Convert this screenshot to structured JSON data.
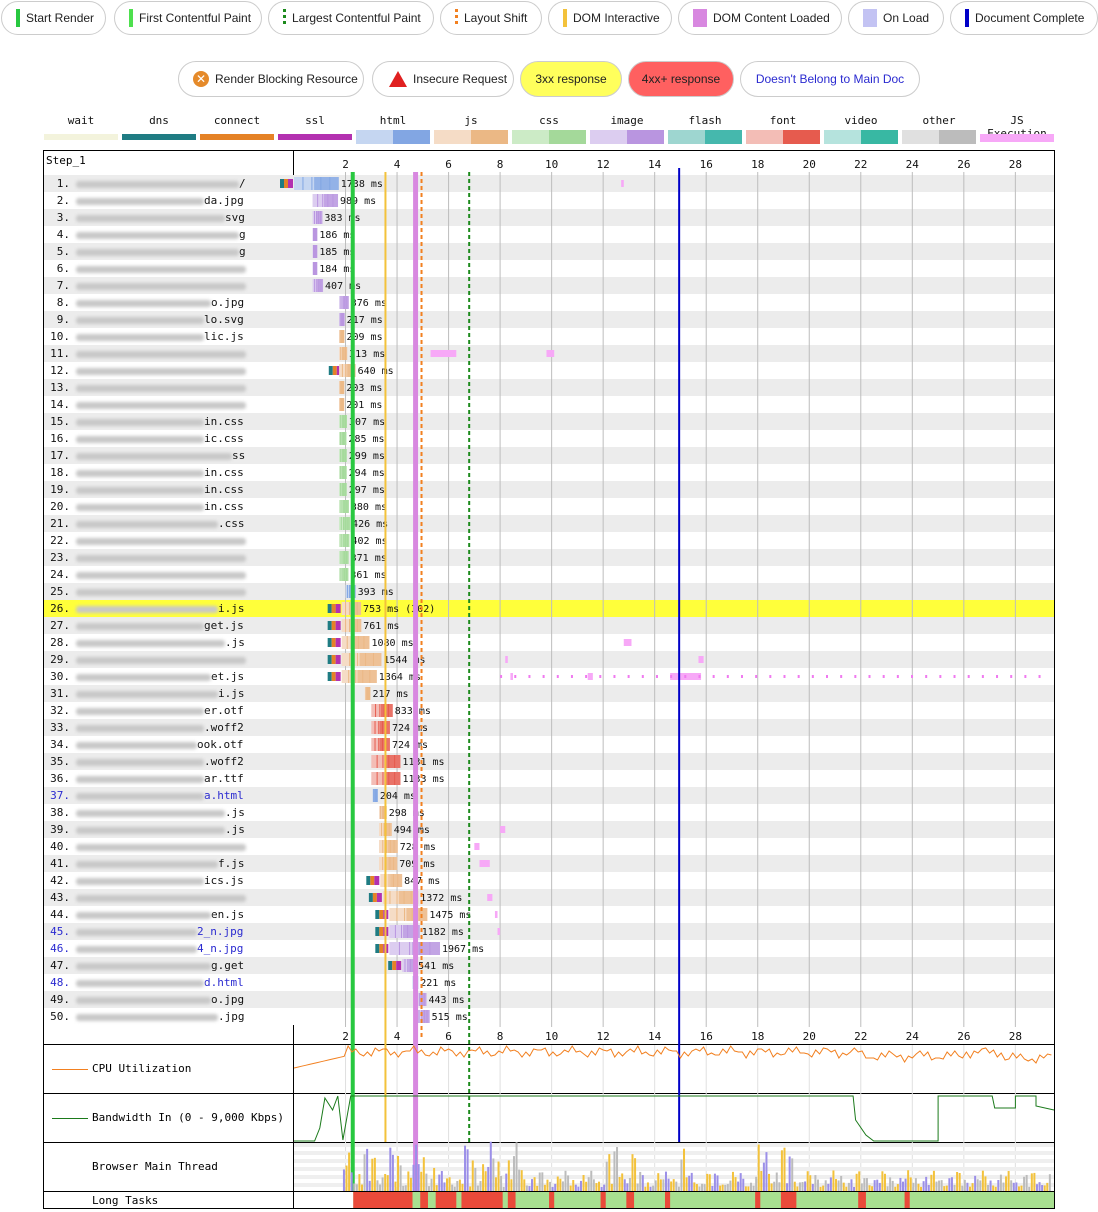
{
  "top_legend": [
    {
      "label": "Start Render",
      "marker": "bar",
      "color": "#28c840"
    },
    {
      "label": "First Contentful Paint",
      "marker": "bar",
      "color": "#4ee04e"
    },
    {
      "label": "Largest Contentful Paint",
      "marker": "dotted",
      "color": "#1c8a1c"
    },
    {
      "label": "Layout Shift",
      "marker": "dotted",
      "color": "#f28020"
    },
    {
      "label": "DOM Interactive",
      "marker": "bar",
      "color": "#f3c23b"
    },
    {
      "label": "DOM Content Loaded",
      "marker": "block",
      "color": "#d888e0"
    },
    {
      "label": "On Load",
      "marker": "block",
      "color": "#c3c3f3"
    },
    {
      "label": "Document Complete",
      "marker": "bar",
      "color": "#0000c8"
    }
  ],
  "second_legend": [
    {
      "label": "Render Blocking Resource",
      "style": "blocking"
    },
    {
      "label": "Insecure Request",
      "style": "insecure"
    },
    {
      "label": "3xx response",
      "style": "r3xx"
    },
    {
      "label": "4xx+ response",
      "style": "r4xx"
    },
    {
      "label": "Doesn't Belong to Main Doc",
      "style": "notmain"
    }
  ],
  "type_legend": [
    {
      "label": "wait",
      "colors": [
        "#f3f3dc"
      ]
    },
    {
      "label": "dns",
      "colors": [
        "#1f7c83"
      ]
    },
    {
      "label": "connect",
      "colors": [
        "#e58226"
      ]
    },
    {
      "label": "ssl",
      "colors": [
        "#b331b0"
      ]
    },
    {
      "label": "html",
      "colors": [
        "#c5d6f1",
        "#82a6e3"
      ]
    },
    {
      "label": "js",
      "colors": [
        "#f5dcc6",
        "#ebb885"
      ]
    },
    {
      "label": "css",
      "colors": [
        "#ccebc6",
        "#a4d99a"
      ]
    },
    {
      "label": "image",
      "colors": [
        "#dccdf0",
        "#b995e0"
      ]
    },
    {
      "label": "flash",
      "colors": [
        "#9ed6d0",
        "#45b8ad"
      ]
    },
    {
      "label": "font",
      "colors": [
        "#f3bdb6",
        "#e65b4e"
      ]
    },
    {
      "label": "video",
      "colors": [
        "#b5e3dd",
        "#38b8a3"
      ]
    },
    {
      "label": "other",
      "colors": [
        "#e0e0e0",
        "#bcbcbc"
      ]
    },
    {
      "label": "JS Execution",
      "colors": [
        "#f7a8f7"
      ]
    }
  ],
  "step_label": "Step_1",
  "axis": {
    "ticks": [
      2,
      4,
      6,
      8,
      10,
      12,
      14,
      16,
      18,
      20,
      22,
      24,
      26,
      28
    ],
    "max_s": 29.5
  },
  "markers": {
    "start_render": 2.28,
    "fcp": 2.2,
    "lcp": 6.8,
    "layout_shift": 4.95,
    "dom_interactive": 3.55,
    "dom_content_loaded": 4.7,
    "document_complete": 14.95
  },
  "requests": [
    {
      "n": "1.",
      "suffix": "/",
      "start": 0.0,
      "dur": 1.738,
      "text": "1738 ms",
      "type": "html",
      "conn": true
    },
    {
      "n": "2.",
      "suffix": "da.jpg",
      "start": 0.72,
      "dur": 0.989,
      "text": "989 ms",
      "type": "image"
    },
    {
      "n": "3.",
      "suffix": "svg",
      "start": 0.72,
      "dur": 0.383,
      "text": "383 ms",
      "type": "image"
    },
    {
      "n": "4.",
      "suffix": "g",
      "start": 0.72,
      "dur": 0.186,
      "text": "186 ms",
      "type": "image"
    },
    {
      "n": "5.",
      "suffix": "g",
      "start": 0.72,
      "dur": 0.185,
      "text": "185 ms",
      "type": "image"
    },
    {
      "n": "6.",
      "suffix": "",
      "start": 0.72,
      "dur": 0.184,
      "text": "184 ms",
      "type": "image"
    },
    {
      "n": "7.",
      "suffix": "",
      "start": 0.72,
      "dur": 0.407,
      "text": "407 ms",
      "type": "image"
    },
    {
      "n": "8.",
      "suffix": "o.jpg",
      "start": 1.75,
      "dur": 0.376,
      "text": "376 ms",
      "type": "image"
    },
    {
      "n": "9.",
      "suffix": "lo.svg",
      "start": 1.75,
      "dur": 0.217,
      "text": "217 ms",
      "type": "image"
    },
    {
      "n": "10.",
      "suffix": "lic.js",
      "start": 1.75,
      "dur": 0.209,
      "text": "209 ms",
      "type": "js"
    },
    {
      "n": "11.",
      "suffix": "",
      "start": 1.75,
      "dur": 0.313,
      "text": "313 ms",
      "type": "js"
    },
    {
      "n": "12.",
      "suffix": "",
      "start": 1.75,
      "dur": 0.64,
      "text": "640 ms",
      "type": "js",
      "conn": true,
      "conn_at": 1.35
    },
    {
      "n": "13.",
      "suffix": "",
      "start": 1.75,
      "dur": 0.203,
      "text": "203 ms",
      "type": "js"
    },
    {
      "n": "14.",
      "suffix": "",
      "start": 1.75,
      "dur": 0.201,
      "text": "201 ms",
      "type": "js"
    },
    {
      "n": "15.",
      "suffix": "in.css",
      "start": 1.75,
      "dur": 0.307,
      "text": "307 ms",
      "type": "css"
    },
    {
      "n": "16.",
      "suffix": "ic.css",
      "start": 1.75,
      "dur": 0.285,
      "text": "285 ms",
      "type": "css"
    },
    {
      "n": "17.",
      "suffix": "ss",
      "start": 1.75,
      "dur": 0.299,
      "text": "299 ms",
      "type": "css"
    },
    {
      "n": "18.",
      "suffix": "in.css",
      "start": 1.75,
      "dur": 0.294,
      "text": "294 ms",
      "type": "css"
    },
    {
      "n": "19.",
      "suffix": "in.css",
      "start": 1.75,
      "dur": 0.297,
      "text": "297 ms",
      "type": "css"
    },
    {
      "n": "20.",
      "suffix": "in.css",
      "start": 1.75,
      "dur": 0.38,
      "text": "380 ms",
      "type": "css"
    },
    {
      "n": "21.",
      "suffix": ".css",
      "start": 1.75,
      "dur": 0.426,
      "text": "426 ms",
      "type": "css"
    },
    {
      "n": "22.",
      "suffix": "",
      "start": 1.75,
      "dur": 0.402,
      "text": "402 ms",
      "type": "css"
    },
    {
      "n": "23.",
      "suffix": "",
      "start": 1.75,
      "dur": 0.371,
      "text": "371 ms",
      "type": "css"
    },
    {
      "n": "24.",
      "suffix": "",
      "start": 1.75,
      "dur": 0.361,
      "text": "361 ms",
      "type": "css"
    },
    {
      "n": "25.",
      "suffix": "",
      "start": 2.0,
      "dur": 0.393,
      "text": "393 ms",
      "type": "html"
    },
    {
      "n": "26.",
      "suffix": "i.js",
      "start": 1.85,
      "dur": 0.753,
      "text": "753 ms (302)",
      "type": "js",
      "conn": true,
      "highlight": true
    },
    {
      "n": "27.",
      "suffix": "get.js",
      "start": 1.85,
      "dur": 0.761,
      "text": "761 ms",
      "type": "js",
      "conn": true
    },
    {
      "n": "28.",
      "suffix": ".js",
      "start": 1.85,
      "dur": 1.08,
      "text": "1080 ms",
      "type": "js",
      "conn": true
    },
    {
      "n": "29.",
      "suffix": "",
      "start": 1.85,
      "dur": 1.544,
      "text": "1544 ms",
      "type": "js",
      "conn": true
    },
    {
      "n": "30.",
      "suffix": "et.js",
      "start": 1.85,
      "dur": 1.364,
      "text": "1364 ms",
      "type": "js",
      "conn": true
    },
    {
      "n": "31.",
      "suffix": "i.js",
      "start": 2.75,
      "dur": 0.217,
      "text": "217 ms",
      "type": "js"
    },
    {
      "n": "32.",
      "suffix": "er.otf",
      "start": 3.0,
      "dur": 0.833,
      "text": "833 ms",
      "type": "font"
    },
    {
      "n": "33.",
      "suffix": ".woff2",
      "start": 3.0,
      "dur": 0.724,
      "text": "724 ms",
      "type": "font"
    },
    {
      "n": "34.",
      "suffix": "ook.otf",
      "start": 3.0,
      "dur": 0.724,
      "text": "724 ms",
      "type": "font"
    },
    {
      "n": "35.",
      "suffix": ".woff2",
      "start": 3.0,
      "dur": 1.131,
      "text": "1131 ms",
      "type": "font"
    },
    {
      "n": "36.",
      "suffix": "ar.ttf",
      "start": 3.0,
      "dur": 1.133,
      "text": "1133 ms",
      "type": "font"
    },
    {
      "n": "37.",
      "suffix": "a.html",
      "start": 3.05,
      "dur": 0.204,
      "text": "204 ms",
      "type": "html",
      "blue": true
    },
    {
      "n": "38.",
      "suffix": ".js",
      "start": 3.3,
      "dur": 0.298,
      "text": "298 ms",
      "type": "js"
    },
    {
      "n": "39.",
      "suffix": ".js",
      "start": 3.3,
      "dur": 0.494,
      "text": "494 ms",
      "type": "js"
    },
    {
      "n": "40.",
      "suffix": "",
      "start": 3.3,
      "dur": 0.728,
      "text": "728 ms",
      "type": "js"
    },
    {
      "n": "41.",
      "suffix": "f.js",
      "start": 3.3,
      "dur": 0.709,
      "text": "709 ms",
      "type": "js"
    },
    {
      "n": "42.",
      "suffix": "ics.js",
      "start": 3.35,
      "dur": 0.847,
      "text": "847 ms",
      "type": "js",
      "conn": true
    },
    {
      "n": "43.",
      "suffix": "",
      "start": 3.45,
      "dur": 1.372,
      "text": "1372 ms",
      "type": "js",
      "conn": true
    },
    {
      "n": "44.",
      "suffix": "en.js",
      "start": 3.7,
      "dur": 1.475,
      "text": "1475 ms",
      "type": "js",
      "conn": true
    },
    {
      "n": "45.",
      "suffix": "2_n.jpg",
      "start": 3.7,
      "dur": 1.182,
      "text": "1182 ms",
      "type": "image",
      "conn": true,
      "blue": true
    },
    {
      "n": "46.",
      "suffix": "4_n.jpg",
      "start": 3.7,
      "dur": 1.967,
      "text": "1967 ms",
      "type": "image",
      "conn": true,
      "blue": true
    },
    {
      "n": "47.",
      "suffix": "g.get",
      "start": 4.2,
      "dur": 0.541,
      "text": "541 ms",
      "type": "image",
      "conn": true
    },
    {
      "n": "48.",
      "suffix": "d.html",
      "start": 4.6,
      "dur": 0.221,
      "text": "221 ms",
      "type": "html",
      "blue": true
    },
    {
      "n": "49.",
      "suffix": "o.jpg",
      "start": 4.7,
      "dur": 0.443,
      "text": "443 ms",
      "type": "image"
    },
    {
      "n": "50.",
      "suffix": ".jpg",
      "start": 4.75,
      "dur": 0.515,
      "text": "515 ms",
      "type": "image"
    }
  ],
  "bottom": {
    "cpu_label": "CPU Utilization",
    "bw_label": "Bandwidth In (0 - 9,000 Kbps)",
    "main_label": "Browser Main Thread",
    "long_label": "Long Tasks"
  }
}
